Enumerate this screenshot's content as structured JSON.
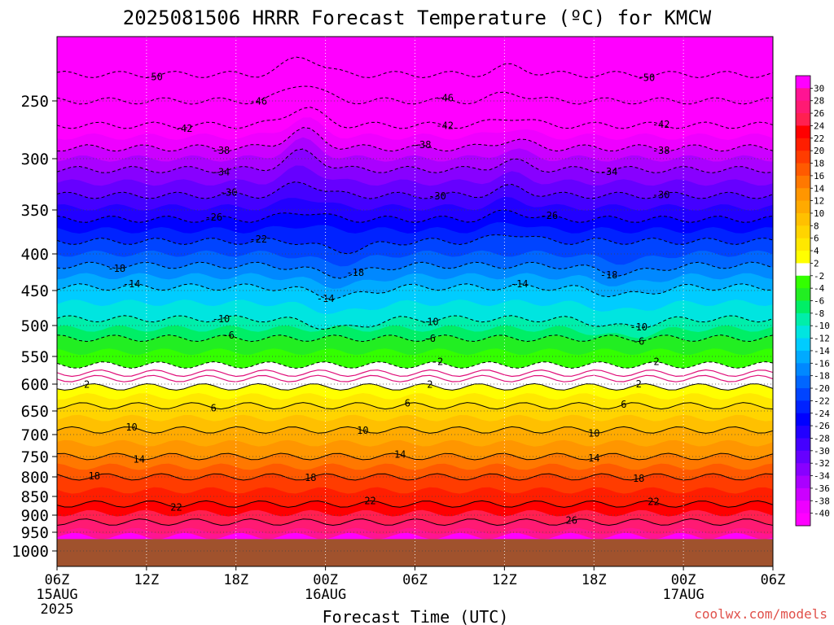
{
  "chart_data": {
    "type": "heatmap",
    "title": "2025081506 HRRR Forecast Temperature (ºC) for KMCW",
    "xlabel": "Forecast Time (UTC)",
    "watermark": "coolwx.com/models",
    "y_axis": {
      "scale": "log-pressure",
      "ylim": [
        1050,
        200
      ],
      "ticks": [
        "250",
        "300",
        "350",
        "400",
        "450",
        "500",
        "550",
        "600",
        "650",
        "700",
        "750",
        "800",
        "850",
        "900",
        "950",
        "1000"
      ],
      "tick_values": [
        250,
        300,
        350,
        400,
        450,
        500,
        550,
        600,
        650,
        700,
        750,
        800,
        850,
        900,
        950,
        1000
      ]
    },
    "x_axis": {
      "range_hours": [
        0,
        48
      ],
      "ticks": [
        {
          "hour": 0,
          "label": "06Z",
          "sub1": "15AUG",
          "sub2": "2025"
        },
        {
          "hour": 6,
          "label": "12Z",
          "sub1": "",
          "sub2": ""
        },
        {
          "hour": 12,
          "label": "18Z",
          "sub1": "",
          "sub2": ""
        },
        {
          "hour": 18,
          "label": "00Z",
          "sub1": "16AUG",
          "sub2": ""
        },
        {
          "hour": 24,
          "label": "06Z",
          "sub1": "",
          "sub2": ""
        },
        {
          "hour": 30,
          "label": "12Z",
          "sub1": "",
          "sub2": ""
        },
        {
          "hour": 36,
          "label": "18Z",
          "sub1": "",
          "sub2": ""
        },
        {
          "hour": 42,
          "label": "00Z",
          "sub1": "17AUG",
          "sub2": ""
        },
        {
          "hour": 48,
          "label": "06Z",
          "sub1": "",
          "sub2": ""
        }
      ]
    },
    "surface_pressure_hpa": 968,
    "surface_color": "#a0522d",
    "colorbar": {
      "labels": [
        "30",
        "28",
        "26",
        "24",
        "22",
        "20",
        "18",
        "16",
        "14",
        "12",
        "10",
        "8",
        "6",
        "4",
        "2",
        "-2",
        "-4",
        "-6",
        "-8",
        "-10",
        "-12",
        "-14",
        "-16",
        "-18",
        "-20",
        "-22",
        "-24",
        "-26",
        "-28",
        "-30",
        "-32",
        "-34",
        "-36",
        "-38",
        "-40"
      ],
      "colors": [
        "#ff00ff",
        "#ff1493",
        "#ff1a73",
        "#ff2050",
        "#ff0000",
        "#ff1e00",
        "#ff3c00",
        "#ff5a00",
        "#ff7800",
        "#ff9600",
        "#ffaa00",
        "#ffc000",
        "#ffd400",
        "#ffe800",
        "#ffff00",
        "#ffffff",
        "#33ff00",
        "#22ee22",
        "#00ee66",
        "#00eeaa",
        "#00e5e0",
        "#00ccff",
        "#00aaff",
        "#0088ff",
        "#0066ff",
        "#0044ff",
        "#0022ff",
        "#0000ff",
        "#2200ff",
        "#4400ff",
        "#6600ff",
        "#8800ff",
        "#aa00ff",
        "#cc00ff",
        "#ee00ff",
        "#ff00ff"
      ]
    },
    "level_profile": [
      {
        "p": 200,
        "t": -56
      },
      {
        "p": 230,
        "t": -50
      },
      {
        "p": 250,
        "t": -46
      },
      {
        "p": 270,
        "t": -42
      },
      {
        "p": 290,
        "t": -38
      },
      {
        "p": 310,
        "t": -34
      },
      {
        "p": 335,
        "t": -30
      },
      {
        "p": 360,
        "t": -26
      },
      {
        "p": 385,
        "t": -22
      },
      {
        "p": 415,
        "t": -18
      },
      {
        "p": 445,
        "t": -14
      },
      {
        "p": 490,
        "t": -10
      },
      {
        "p": 520,
        "t": -6
      },
      {
        "p": 565,
        "t": -2
      },
      {
        "p": 605,
        "t": 2
      },
      {
        "p": 640,
        "t": 6
      },
      {
        "p": 690,
        "t": 10
      },
      {
        "p": 750,
        "t": 14
      },
      {
        "p": 800,
        "t": 18
      },
      {
        "p": 870,
        "t": 22
      },
      {
        "p": 920,
        "t": 26
      },
      {
        "p": 960,
        "t": 29
      }
    ],
    "contours": [
      {
        "value": -50,
        "label": "-50",
        "labels_at": [
          6.5,
          39.5
        ]
      },
      {
        "value": -46,
        "label": "-46",
        "labels_at": [
          13.5,
          26
        ]
      },
      {
        "value": -42,
        "label": "-42",
        "labels_at": [
          8.5,
          26,
          40.5
        ]
      },
      {
        "value": -38,
        "label": "-38",
        "labels_at": [
          11,
          24.5,
          40.5
        ]
      },
      {
        "value": -34,
        "label": "-34",
        "labels_at": [
          11,
          37
        ]
      },
      {
        "value": -30,
        "label": "-30",
        "labels_at": [
          11.5,
          25.5,
          40.5
        ]
      },
      {
        "value": -26,
        "label": "-26",
        "labels_at": [
          10.5,
          33
        ]
      },
      {
        "value": -22,
        "label": "-22",
        "labels_at": [
          13.5
        ]
      },
      {
        "value": -18,
        "label": "-18",
        "labels_at": [
          4,
          20,
          37
        ]
      },
      {
        "value": -14,
        "label": "-14",
        "labels_at": [
          5,
          18,
          31
        ]
      },
      {
        "value": -10,
        "label": "-10",
        "labels_at": [
          11,
          25,
          39
        ]
      },
      {
        "value": -6,
        "label": "-6",
        "labels_at": [
          11.5,
          25,
          39
        ]
      },
      {
        "value": -2,
        "label": "-2",
        "labels_at": [
          25.5,
          40
        ]
      },
      {
        "value": 2,
        "label": "2",
        "labels_at": [
          2,
          25,
          39
        ]
      },
      {
        "value": 6,
        "label": "6",
        "labels_at": [
          10.5,
          23.5,
          38
        ]
      },
      {
        "value": 10,
        "label": "10",
        "labels_at": [
          5,
          20.5,
          36
        ]
      },
      {
        "value": 14,
        "label": "14",
        "labels_at": [
          5.5,
          23,
          36
        ]
      },
      {
        "value": 18,
        "label": "18",
        "labels_at": [
          2.5,
          17,
          39
        ]
      },
      {
        "value": 22,
        "label": "22",
        "labels_at": [
          8,
          21,
          40
        ]
      },
      {
        "value": 26,
        "label": "26",
        "labels_at": [
          34.5
        ]
      }
    ],
    "zero_line_color": "#e0107a",
    "grid": true
  }
}
